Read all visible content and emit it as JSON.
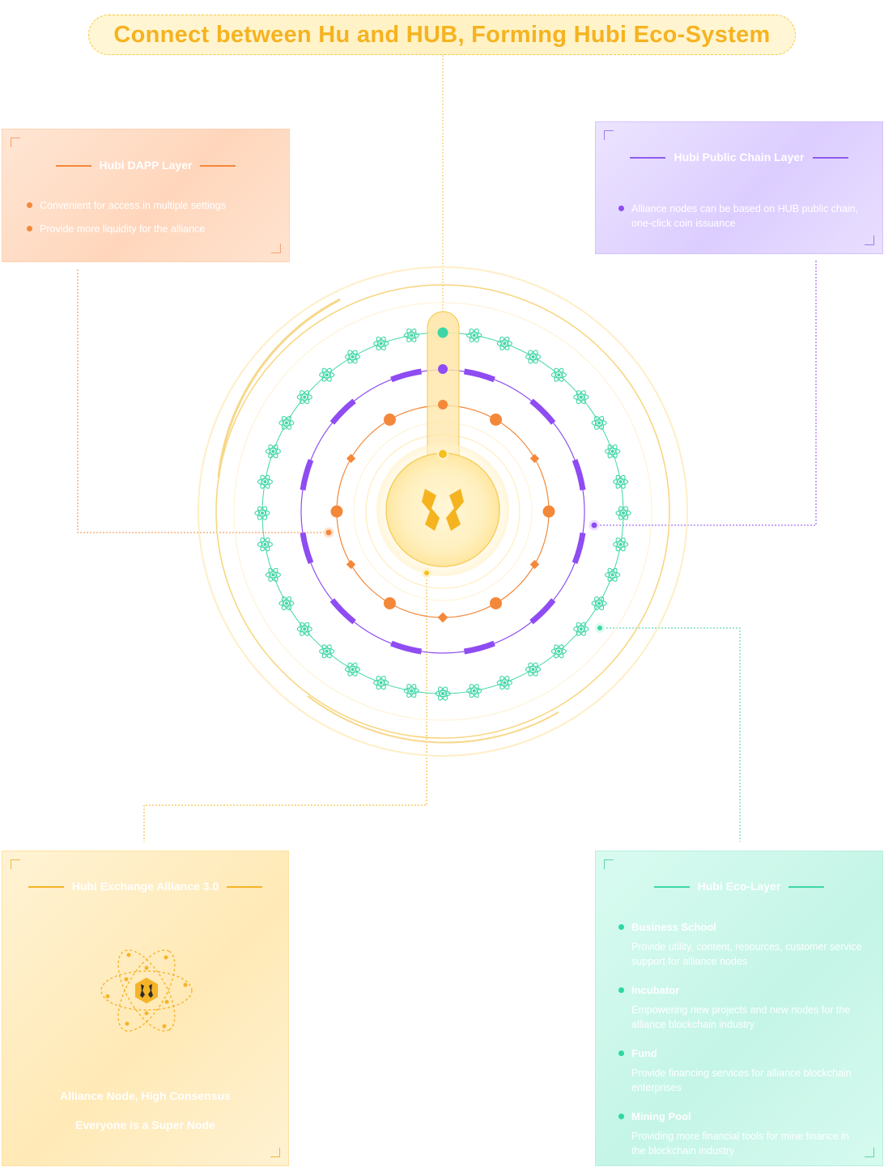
{
  "title": "Connect between Hu and HUB, Forming Hubi Eco-System",
  "colors": {
    "orange": "#f4883a",
    "purple": "#8e4cf2",
    "teal": "#3fd6a6",
    "gold": "#f5b320"
  },
  "dapp": {
    "title": "Hubi DAPP Layer",
    "items": [
      "Convenient for access in multiple settings",
      "Provide more liquidity for the alliance"
    ]
  },
  "chain": {
    "title": "Hubi Public Chain Layer",
    "items": [
      "Alliance nodes can be based on HUB public chain, one-click coin issuance"
    ]
  },
  "exchange": {
    "title": "Hubi Exchange Alliance 3.0",
    "line1": "Alliance Node, High Consensus",
    "line2": "Everyone is a Super Node"
  },
  "eco": {
    "title": "Hubi Eco-Layer",
    "items": [
      {
        "title": "Business School",
        "desc": "Provide utility, content, resources, customer service support for alliance nodes"
      },
      {
        "title": "Incubator",
        "desc": "Empowering new projects and new nodes for the alliance blockchain industry"
      },
      {
        "title": "Fund",
        "desc": "Provide financing services for alliance blockchain enterprises"
      },
      {
        "title": "Mining Pool",
        "desc": "Providing more financial tools for mine finance in the blockchain industry"
      }
    ]
  },
  "icons": {
    "center": "hubi-logo-icon",
    "exchange": "atom-icon",
    "ring": "atom-icon"
  }
}
